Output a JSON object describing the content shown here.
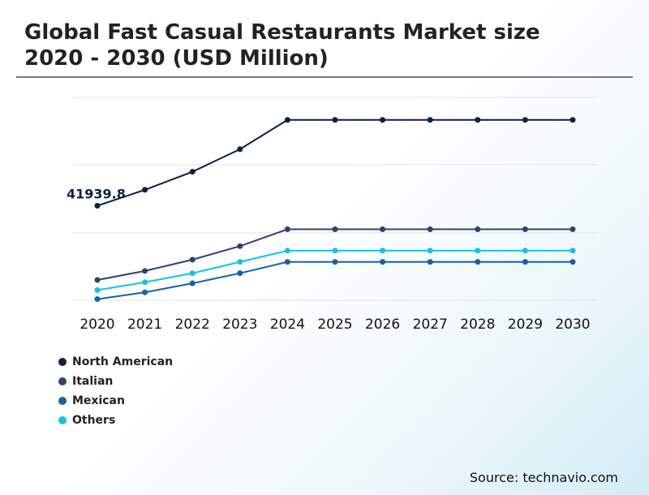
{
  "chart_data": {
    "type": "line",
    "title": "Global Fast Casual Restaurants Market size 2020 - 2030 (USD Million)",
    "categories": [
      "2020",
      "2021",
      "2022",
      "2023",
      "2024",
      "2025",
      "2026",
      "2027",
      "2028",
      "2029",
      "2030"
    ],
    "ylim": [
      0,
      90000
    ],
    "grid": true,
    "legend_position": "bottom-left",
    "series": [
      {
        "name": "North American",
        "color": "#0d1f45",
        "values": [
          41939.8,
          49000,
          57000,
          67000,
          80000,
          80000,
          80000,
          80000,
          80000,
          80000,
          80000
        ]
      },
      {
        "name": "Italian",
        "color": "#2e4370",
        "values": [
          9000,
          13000,
          18000,
          24000,
          31500,
          31500,
          31500,
          31500,
          31500,
          31500,
          31500
        ]
      },
      {
        "name": "Mexican",
        "color": "#1462a8",
        "values": [
          500,
          3500,
          7500,
          12000,
          17000,
          17000,
          17000,
          17000,
          17000,
          17000,
          17000
        ]
      },
      {
        "name": "Others",
        "color": "#19c1e0",
        "values": [
          4500,
          8000,
          12000,
          17000,
          22000,
          22000,
          22000,
          22000,
          22000,
          22000,
          22000
        ]
      }
    ],
    "annotations": [
      {
        "series": "North American",
        "index": 0,
        "text": "41939.8"
      }
    ]
  },
  "source": "Source: technavio.com"
}
